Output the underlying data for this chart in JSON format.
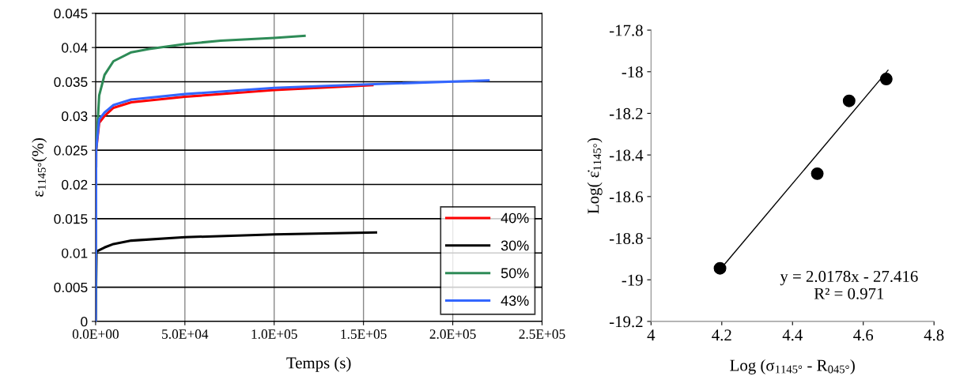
{
  "chart_data": [
    {
      "type": "line",
      "xlabel": "Temps (s)",
      "ylabel": "ε$_{1145°}$(%)",
      "xlim": [
        0,
        250000
      ],
      "ylim": [
        0,
        0.045
      ],
      "xticks": [
        {
          "value": 0,
          "label": "0.0E+00"
        },
        {
          "value": 50000,
          "label": "5.0E+04"
        },
        {
          "value": 100000,
          "label": "1.0E+05"
        },
        {
          "value": 150000,
          "label": "1.5E+05"
        },
        {
          "value": 200000,
          "label": "2.0E+05"
        },
        {
          "value": 250000,
          "label": "2.5E+05"
        }
      ],
      "yticks": [
        0,
        0.005,
        0.01,
        0.015,
        0.02,
        0.025,
        0.03,
        0.035,
        0.04,
        0.045
      ],
      "grid": true,
      "legend": "bottom right",
      "marker": "none",
      "line_style": "solid",
      "series": [
        {
          "name": "40%",
          "color": "#ff0000",
          "x": [
            0,
            300,
            2000,
            5000,
            10000,
            20000,
            50000,
            100000,
            155000
          ],
          "values": [
            0,
            0.025,
            0.029,
            0.03,
            0.0312,
            0.032,
            0.0328,
            0.0338,
            0.0345
          ]
        },
        {
          "name": "30%",
          "color": "#000000",
          "x": [
            0,
            500,
            5000,
            10000,
            20000,
            50000,
            100000,
            157000
          ],
          "values": [
            0,
            0.0102,
            0.0108,
            0.0113,
            0.0118,
            0.0123,
            0.0127,
            0.013
          ]
        },
        {
          "name": "50%",
          "color": "#2e8b57",
          "x": [
            0,
            300,
            2000,
            5000,
            10000,
            20000,
            30000,
            50000,
            70000,
            100000,
            117000
          ],
          "values": [
            0,
            0.025,
            0.033,
            0.036,
            0.038,
            0.0393,
            0.0398,
            0.0405,
            0.041,
            0.0414,
            0.0417
          ]
        },
        {
          "name": "43%",
          "color": "#3366ff",
          "x": [
            0,
            300,
            2000,
            5000,
            10000,
            20000,
            50000,
            100000,
            150000,
            220000
          ],
          "values": [
            0,
            0.025,
            0.0295,
            0.0305,
            0.0316,
            0.0324,
            0.0332,
            0.0341,
            0.0346,
            0.0352
          ]
        }
      ]
    },
    {
      "type": "scatter",
      "xlabel": "Log (σ$_{1145°}$ - R$_{045°}$)",
      "ylabel": "Log( ε̇$_{1145°}$)",
      "xlim": [
        4,
        4.8
      ],
      "ylim": [
        -19.2,
        -17.8
      ],
      "xticks": [
        4,
        4.2,
        4.4,
        4.6,
        4.8
      ],
      "yticks": [
        -19.2,
        -19,
        -18.8,
        -18.6,
        -18.4,
        -18.2,
        -18,
        -17.8
      ],
      "annotations": [
        "y = 2.0178x - 27.416\nR² = 0.971"
      ],
      "series": [
        {
          "color": "#000000",
          "marker": "circle",
          "x": [
            4.195,
            4.47,
            4.56,
            4.665
          ],
          "values": [
            -18.945,
            -18.49,
            -18.14,
            -18.035
          ]
        },
        {
          "type": "line",
          "marker": "none",
          "color": "#000000",
          "x": [
            4.2,
            4.67
          ],
          "values": [
            -18.941,
            -17.993
          ]
        }
      ]
    }
  ]
}
